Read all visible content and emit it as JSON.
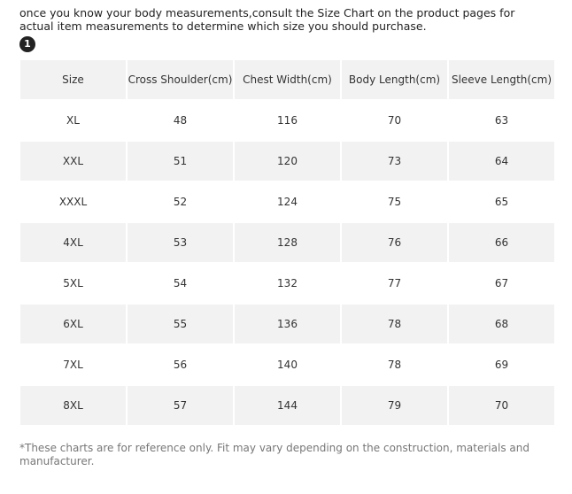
{
  "intro_text": "once you know your body measurements,consult the Size Chart on the product pages for actual item measurements to determine which size you should purchase.",
  "step_badge": "1",
  "table": {
    "headers": [
      "Size",
      "Cross Shoulder(cm)",
      "Chest Width(cm)",
      "Body Length(cm)",
      "Sleeve Length(cm)"
    ],
    "rows": [
      [
        "XL",
        "48",
        "116",
        "70",
        "63"
      ],
      [
        "XXL",
        "51",
        "120",
        "73",
        "64"
      ],
      [
        "XXXL",
        "52",
        "124",
        "75",
        "65"
      ],
      [
        "4XL",
        "53",
        "128",
        "76",
        "66"
      ],
      [
        "5XL",
        "54",
        "132",
        "77",
        "67"
      ],
      [
        "6XL",
        "55",
        "136",
        "78",
        "68"
      ],
      [
        "7XL",
        "56",
        "140",
        "78",
        "69"
      ],
      [
        "8XL",
        "57",
        "144",
        "79",
        "70"
      ]
    ]
  },
  "footnote": "*These charts are for reference only. Fit may vary depending on the construction, materials and manufacturer.",
  "colors": {
    "header_bg": "#f2f2f2",
    "stripe_bg": "#f2f2f2",
    "badge_bg": "#222222"
  }
}
